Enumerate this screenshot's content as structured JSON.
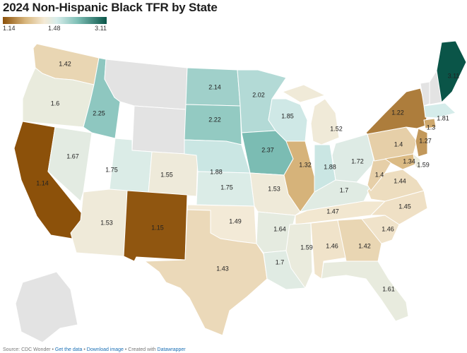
{
  "title": "2024 Non-Hispanic Black TFR by State",
  "legend": {
    "min_label": "1.14",
    "mid_label": "1.48",
    "max_label": "3.11",
    "colors": [
      "#8c510a",
      "#d9b77e",
      "#f4ead6",
      "#d6ecea",
      "#7ebfb6",
      "#0a5548"
    ]
  },
  "no_data_color": "#e3e3e3",
  "states": [
    {
      "id": "WA",
      "value": 1.42,
      "label": "1.42"
    },
    {
      "id": "OR",
      "value": 1.6,
      "label": "1.6"
    },
    {
      "id": "CA",
      "value": 1.14,
      "label": "1.14"
    },
    {
      "id": "NV",
      "value": 1.67,
      "label": "1.67"
    },
    {
      "id": "ID",
      "value": 2.25,
      "label": "2.25"
    },
    {
      "id": "MT",
      "value": null,
      "label": ""
    },
    {
      "id": "WY",
      "value": null,
      "label": ""
    },
    {
      "id": "UT",
      "value": 1.75,
      "label": "1.75"
    },
    {
      "id": "AZ",
      "value": 1.53,
      "label": "1.53"
    },
    {
      "id": "CO",
      "value": 1.55,
      "label": "1.55"
    },
    {
      "id": "NM",
      "value": 1.15,
      "label": "1.15"
    },
    {
      "id": "ND",
      "value": 2.14,
      "label": "2.14"
    },
    {
      "id": "SD",
      "value": 2.22,
      "label": "2.22"
    },
    {
      "id": "NE",
      "value": 1.88,
      "label": "1.88"
    },
    {
      "id": "KS",
      "value": 1.75,
      "label": "1.75"
    },
    {
      "id": "OK",
      "value": 1.49,
      "label": "1.49"
    },
    {
      "id": "TX",
      "value": 1.43,
      "label": "1.43"
    },
    {
      "id": "MN",
      "value": 2.02,
      "label": "2.02"
    },
    {
      "id": "IA",
      "value": 2.37,
      "label": "2.37"
    },
    {
      "id": "MO",
      "value": 1.53,
      "label": "1.53"
    },
    {
      "id": "AR",
      "value": 1.64,
      "label": "1.64"
    },
    {
      "id": "LA",
      "value": 1.7,
      "label": "1.7"
    },
    {
      "id": "WI",
      "value": 1.85,
      "label": "1.85"
    },
    {
      "id": "IL",
      "value": 1.32,
      "label": "1.32"
    },
    {
      "id": "MI",
      "value": 1.52,
      "label": "1.52"
    },
    {
      "id": "IN",
      "value": 1.88,
      "label": "1.88"
    },
    {
      "id": "OH",
      "value": 1.72,
      "label": "1.72"
    },
    {
      "id": "KY",
      "value": 1.7,
      "label": "1.7"
    },
    {
      "id": "TN",
      "value": 1.47,
      "label": "1.47"
    },
    {
      "id": "MS",
      "value": 1.59,
      "label": "1.59"
    },
    {
      "id": "AL",
      "value": 1.46,
      "label": "1.46"
    },
    {
      "id": "GA",
      "value": 1.42,
      "label": "1.42"
    },
    {
      "id": "FL",
      "value": 1.61,
      "label": "1.61"
    },
    {
      "id": "SC",
      "value": 1.46,
      "label": "1.46"
    },
    {
      "id": "NC",
      "value": 1.45,
      "label": "1.45"
    },
    {
      "id": "VA",
      "value": 1.44,
      "label": "1.44"
    },
    {
      "id": "WV",
      "value": 1.4,
      "label": "1.4"
    },
    {
      "id": "PA",
      "value": 1.4,
      "label": "1.4"
    },
    {
      "id": "MD",
      "value": 1.34,
      "label": "1.34"
    },
    {
      "id": "DE",
      "value": 1.59,
      "label": "1.59"
    },
    {
      "id": "NJ",
      "value": 1.27,
      "label": "1.27"
    },
    {
      "id": "NY",
      "value": 1.22,
      "label": "1.22"
    },
    {
      "id": "CT",
      "value": 1.3,
      "label": "1.3"
    },
    {
      "id": "MA",
      "value": 1.81,
      "label": "1.81"
    },
    {
      "id": "VT",
      "value": null,
      "label": ""
    },
    {
      "id": "NH",
      "value": null,
      "label": ""
    },
    {
      "id": "ME",
      "value": 3.11,
      "label": "3.11"
    },
    {
      "id": "AK",
      "value": null,
      "label": ""
    }
  ],
  "footer": {
    "source": "Source: CDC Wonder",
    "sep1": " • ",
    "get_data": "Get the data",
    "sep2": " • ",
    "download": "Download image",
    "sep3": " • Created with ",
    "datawrapper": "Datawrapper"
  }
}
